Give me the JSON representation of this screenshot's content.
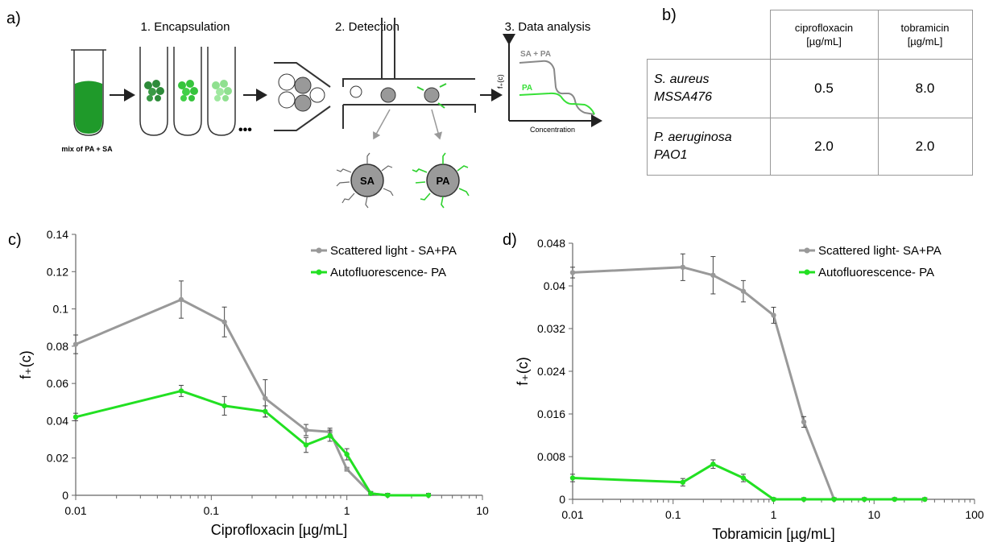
{
  "panel_labels": {
    "a": "a)",
    "b": "b)",
    "c": "c)",
    "d": "d)"
  },
  "schematic": {
    "steps": [
      "1. Encapsulation",
      "2. Detection",
      "3. Data analysis"
    ],
    "mix_label": "mix of PA + SA",
    "ellipsis": "•••",
    "bead_sa": "SA",
    "bead_pa": "PA",
    "mini_chart": {
      "ylabel": "f₊(c)",
      "xlabel": "Concentration",
      "series_labels": [
        "SA + PA",
        "PA"
      ]
    }
  },
  "table": {
    "headers": [
      "",
      "ciprofloxacin [µg/mL]",
      "tobramicin [µg/mL]"
    ],
    "rows": [
      {
        "organism": "S. aureus MSSA476",
        "cipro": "0.5",
        "tobra": "8.0"
      },
      {
        "organism": "P. aeruginosa PAO1",
        "cipro": "2.0",
        "tobra": "2.0"
      }
    ]
  },
  "colors": {
    "gray": "#999999",
    "green": "#22e022",
    "axis": "#666666"
  },
  "chart_data": [
    {
      "type": "line",
      "xscale": "log",
      "xlim": [
        0.01,
        10
      ],
      "ylim": [
        0,
        0.14
      ],
      "xlabel": "Ciprofloxacin [µg/mL]",
      "ylabel": "f₊(c)",
      "xticks": [
        "0.01",
        "0.1",
        "1",
        "10"
      ],
      "yticks": [
        "0",
        "0.02",
        "0.04",
        "0.06",
        "0.08",
        "0.1",
        "0.12",
        "0.14"
      ],
      "legend": "top-right",
      "series": [
        {
          "name": "Scattered light - SA+PA",
          "x": [
            0.01,
            0.06,
            0.125,
            0.25,
            0.5,
            0.75,
            1.0,
            1.5,
            2.0,
            4.0
          ],
          "y": [
            0.081,
            0.105,
            0.093,
            0.052,
            0.035,
            0.034,
            0.014,
            0.001,
            0.0,
            0.0
          ],
          "err": [
            0.005,
            0.01,
            0.008,
            0.01,
            0.003,
            0.002,
            0.001,
            0.001,
            0.001,
            0.001
          ]
        },
        {
          "name": "Autofluorescence- PA",
          "x": [
            0.01,
            0.06,
            0.125,
            0.25,
            0.5,
            0.75,
            1.0,
            1.5,
            2.0,
            4.0
          ],
          "y": [
            0.042,
            0.056,
            0.048,
            0.045,
            0.027,
            0.032,
            0.022,
            0.001,
            0.0,
            0.0
          ],
          "err": [
            0.002,
            0.003,
            0.005,
            0.003,
            0.004,
            0.003,
            0.003,
            0.001,
            0.001,
            0.001
          ]
        }
      ]
    },
    {
      "type": "line",
      "xscale": "log",
      "xlim": [
        0.01,
        100
      ],
      "ylim": [
        0,
        0.048
      ],
      "xlabel": "Tobramicin [µg/mL]",
      "ylabel": "f₊(c)",
      "xticks": [
        "0.01",
        "0.1",
        "1",
        "10",
        "100"
      ],
      "yticks": [
        "0",
        "0.008",
        "0.016",
        "0.024",
        "0.032",
        "0.04",
        "0.048"
      ],
      "legend": "top-right",
      "series": [
        {
          "name": "Scattered light- SA+PA",
          "x": [
            0.01,
            0.125,
            0.25,
            0.5,
            1.0,
            2.0,
            4.0,
            8.0,
            16.0,
            32.0
          ],
          "y": [
            0.0425,
            0.0435,
            0.042,
            0.039,
            0.0345,
            0.0145,
            0.0,
            0.0,
            0.0,
            0.0
          ],
          "err": [
            0.001,
            0.0025,
            0.0035,
            0.002,
            0.0015,
            0.001,
            0.0003,
            0.0003,
            0.0003,
            0.0003
          ]
        },
        {
          "name": "Autofluorescence- PA",
          "x": [
            0.01,
            0.125,
            0.25,
            0.5,
            1.0,
            2.0,
            4.0,
            8.0,
            16.0,
            32.0
          ],
          "y": [
            0.004,
            0.0032,
            0.0066,
            0.004,
            0.0,
            0.0,
            0.0,
            0.0,
            0.0,
            0.0
          ],
          "err": [
            0.0007,
            0.0007,
            0.0008,
            0.0007,
            0.0003,
            0.0003,
            0.0003,
            0.0003,
            0.0003,
            0.0003
          ]
        }
      ]
    }
  ]
}
